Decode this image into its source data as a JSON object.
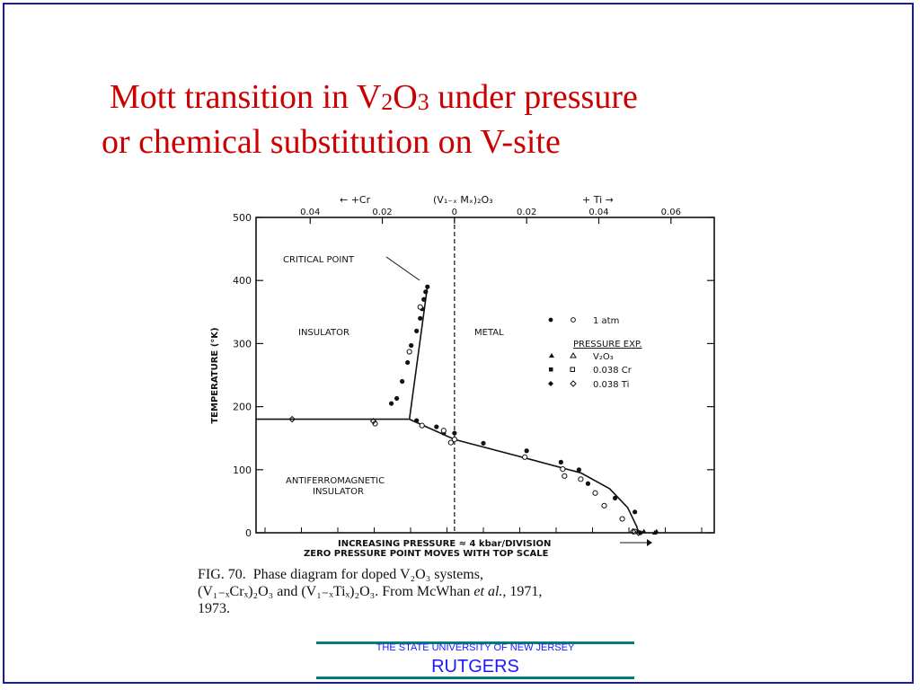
{
  "slide": {
    "title_line1_pre": "Mott transition in V",
    "title_sub1": "2",
    "title_mid": "O",
    "title_sub2": "3",
    "title_post": " under pressure",
    "title_line2": "or chemical substitution on V-site"
  },
  "chart_data": {
    "type": "scatter",
    "top_axis": {
      "label_left": "← +Cr",
      "label_center": "(V₁₋ₓ Mₓ)₂O₃",
      "label_right": "+ Ti →",
      "ticks": [
        "0.04",
        "0.02",
        "0",
        "0.02",
        "0.04",
        "0.06"
      ],
      "tick_positions": [
        -0.04,
        -0.02,
        0,
        0.02,
        0.04,
        0.06
      ],
      "xlim": [
        -0.055,
        0.072
      ]
    },
    "ylabel": "TEMPERATURE (°K)",
    "ylim": [
      0,
      500
    ],
    "yticks": [
      0,
      100,
      200,
      300,
      400,
      500
    ],
    "xlabel_line1": "INCREASING PRESSURE ≈ 4 kbar/DIVISION",
    "xlabel_line2": "ZERO PRESSURE POINT MOVES WITH TOP SCALE",
    "region_labels": {
      "critical_point": "CRITICAL POINT",
      "insulator": "INSULATOR",
      "metal": "METAL",
      "afi_line1": "ANTIFERROMAGNETIC",
      "afi_line2": "INSULATOR"
    },
    "legend": {
      "row1": "1 atm",
      "header": "PRESSURE EXP.",
      "row2": "V₂O₃",
      "row3": "0.038 Cr",
      "row4": "0.038 Ti"
    },
    "lines": [
      {
        "name": "first-order-insulator-metal",
        "points": [
          [
            -0.0125,
            180
          ],
          [
            -0.0075,
            390
          ]
        ]
      },
      {
        "name": "afi-boundary-left",
        "points": [
          [
            -0.055,
            180
          ],
          [
            -0.0125,
            180
          ]
        ]
      },
      {
        "name": "afi-boundary-right",
        "points": [
          [
            -0.0125,
            180
          ],
          [
            0.0,
            148
          ],
          [
            0.02,
            118
          ],
          [
            0.035,
            95
          ],
          [
            0.043,
            70
          ],
          [
            0.048,
            40
          ],
          [
            0.0505,
            10
          ],
          [
            0.051,
            0
          ]
        ]
      }
    ],
    "points_filled": [
      [
        -0.0075,
        390
      ],
      [
        -0.008,
        382
      ],
      [
        -0.0085,
        370
      ],
      [
        -0.009,
        355
      ],
      [
        -0.0095,
        340
      ],
      [
        -0.0105,
        320
      ],
      [
        -0.012,
        297
      ],
      [
        -0.013,
        270
      ],
      [
        -0.0145,
        240
      ],
      [
        -0.016,
        213
      ],
      [
        -0.0175,
        205
      ],
      [
        -0.0105,
        178
      ],
      [
        -0.005,
        168
      ],
      [
        -0.003,
        158
      ],
      [
        0.0,
        148
      ],
      [
        0.0,
        158
      ],
      [
        0.008,
        142
      ],
      [
        0.02,
        130
      ],
      [
        0.0295,
        112
      ],
      [
        0.0345,
        100
      ],
      [
        0.037,
        78
      ],
      [
        0.0445,
        55
      ],
      [
        0.05,
        33
      ],
      [
        0.0515,
        0
      ]
    ],
    "points_open": [
      [
        -0.0095,
        358
      ],
      [
        -0.0125,
        287
      ],
      [
        -0.022,
        173
      ],
      [
        -0.009,
        170
      ],
      [
        -0.003,
        162
      ],
      [
        -0.001,
        143
      ],
      [
        0.0,
        148
      ],
      [
        0.0195,
        120
      ],
      [
        0.03,
        101
      ],
      [
        0.0305,
        90
      ],
      [
        0.035,
        85
      ],
      [
        0.039,
        63
      ],
      [
        0.0415,
        43
      ],
      [
        0.0465,
        22
      ],
      [
        0.05,
        2
      ]
    ],
    "points_triangle": [
      [
        0.0525,
        2
      ],
      [
        0.056,
        2
      ],
      [
        0.0555,
        0
      ]
    ],
    "points_open_diamond": [
      [
        -0.045,
        180
      ],
      [
        -0.0225,
        177
      ],
      [
        0.0495,
        2
      ],
      [
        0.051,
        0
      ]
    ]
  },
  "caption": {
    "fig_num": "FIG. 70.",
    "text1": "Phase diagram for doped V₂O₃ systems,",
    "text2": "(V₁₋ₓCrₓ)₂O₃ and (V₁₋ₓTiₓ)₂O₃. From McWhan ",
    "et_al": "et al.",
    "text3": ", 1971,",
    "text4": "1973."
  },
  "footer": {
    "university": "THE STATE UNIVERSITY OF NEW JERSEY",
    "brand": "RUTGERS"
  },
  "colors": {
    "title": "#cc0000",
    "frame": "#1a1aa8",
    "footer_bar": "#007d7a",
    "footer_text": "#1a1aff"
  }
}
